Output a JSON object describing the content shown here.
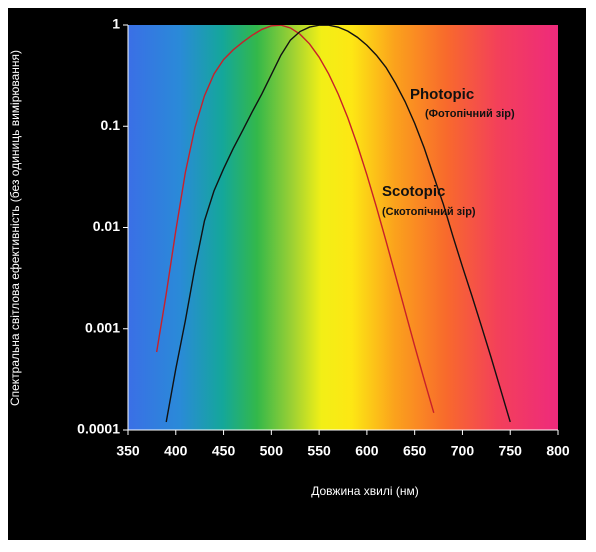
{
  "chart_data": {
    "type": "line",
    "yscale": "log",
    "xlabel": "Довжина хвилі (нм)",
    "ylabel": "Спектральна світлова ефективність (без одиниць вимірювання)",
    "xlim": [
      350,
      800
    ],
    "xticks": [
      350,
      400,
      450,
      500,
      550,
      600,
      650,
      700,
      750,
      800
    ],
    "ylim": [
      0.0001,
      1
    ],
    "yticks": [
      0.0001,
      0.001,
      0.01,
      0.1,
      1
    ],
    "annotations": [
      "Photopic",
      "(Фотопічний зір)",
      "Scotopic",
      "(Скотопічний зір)"
    ],
    "series": [
      {
        "name": "Scotopic",
        "color": "#c8202a",
        "x": [
          380,
          390,
          400,
          410,
          420,
          430,
          440,
          450,
          460,
          470,
          480,
          490,
          500,
          510,
          520,
          530,
          540,
          550,
          560,
          570,
          580,
          590,
          600,
          610,
          620,
          630,
          640,
          650,
          660,
          670
        ],
        "values": [
          0.000589,
          0.002209,
          0.00929,
          0.03484,
          0.0966,
          0.1998,
          0.3281,
          0.455,
          0.567,
          0.676,
          0.793,
          0.904,
          0.982,
          0.997,
          0.935,
          0.811,
          0.65,
          0.481,
          0.3288,
          0.2076,
          0.1212,
          0.0655,
          0.03315,
          0.01593,
          0.00737,
          0.003335,
          0.001497,
          0.000677,
          0.000313,
          0.000148
        ]
      },
      {
        "name": "Photopic",
        "color": "#111111",
        "x": [
          390,
          400,
          410,
          420,
          430,
          440,
          450,
          460,
          470,
          480,
          490,
          500,
          510,
          520,
          530,
          540,
          550,
          555,
          560,
          570,
          580,
          590,
          600,
          610,
          620,
          630,
          640,
          650,
          660,
          670,
          680,
          690,
          700,
          710,
          720,
          730,
          740,
          750
        ],
        "values": [
          0.00012,
          0.0004,
          0.0012,
          0.004,
          0.0116,
          0.023,
          0.038,
          0.06,
          0.091,
          0.139,
          0.208,
          0.323,
          0.503,
          0.71,
          0.862,
          0.954,
          0.995,
          1,
          0.995,
          0.952,
          0.87,
          0.757,
          0.631,
          0.503,
          0.381,
          0.265,
          0.175,
          0.107,
          0.061,
          0.032,
          0.017,
          0.0082,
          0.0041,
          0.0021,
          0.00105,
          0.00052,
          0.00025,
          0.00012
        ]
      }
    ]
  }
}
